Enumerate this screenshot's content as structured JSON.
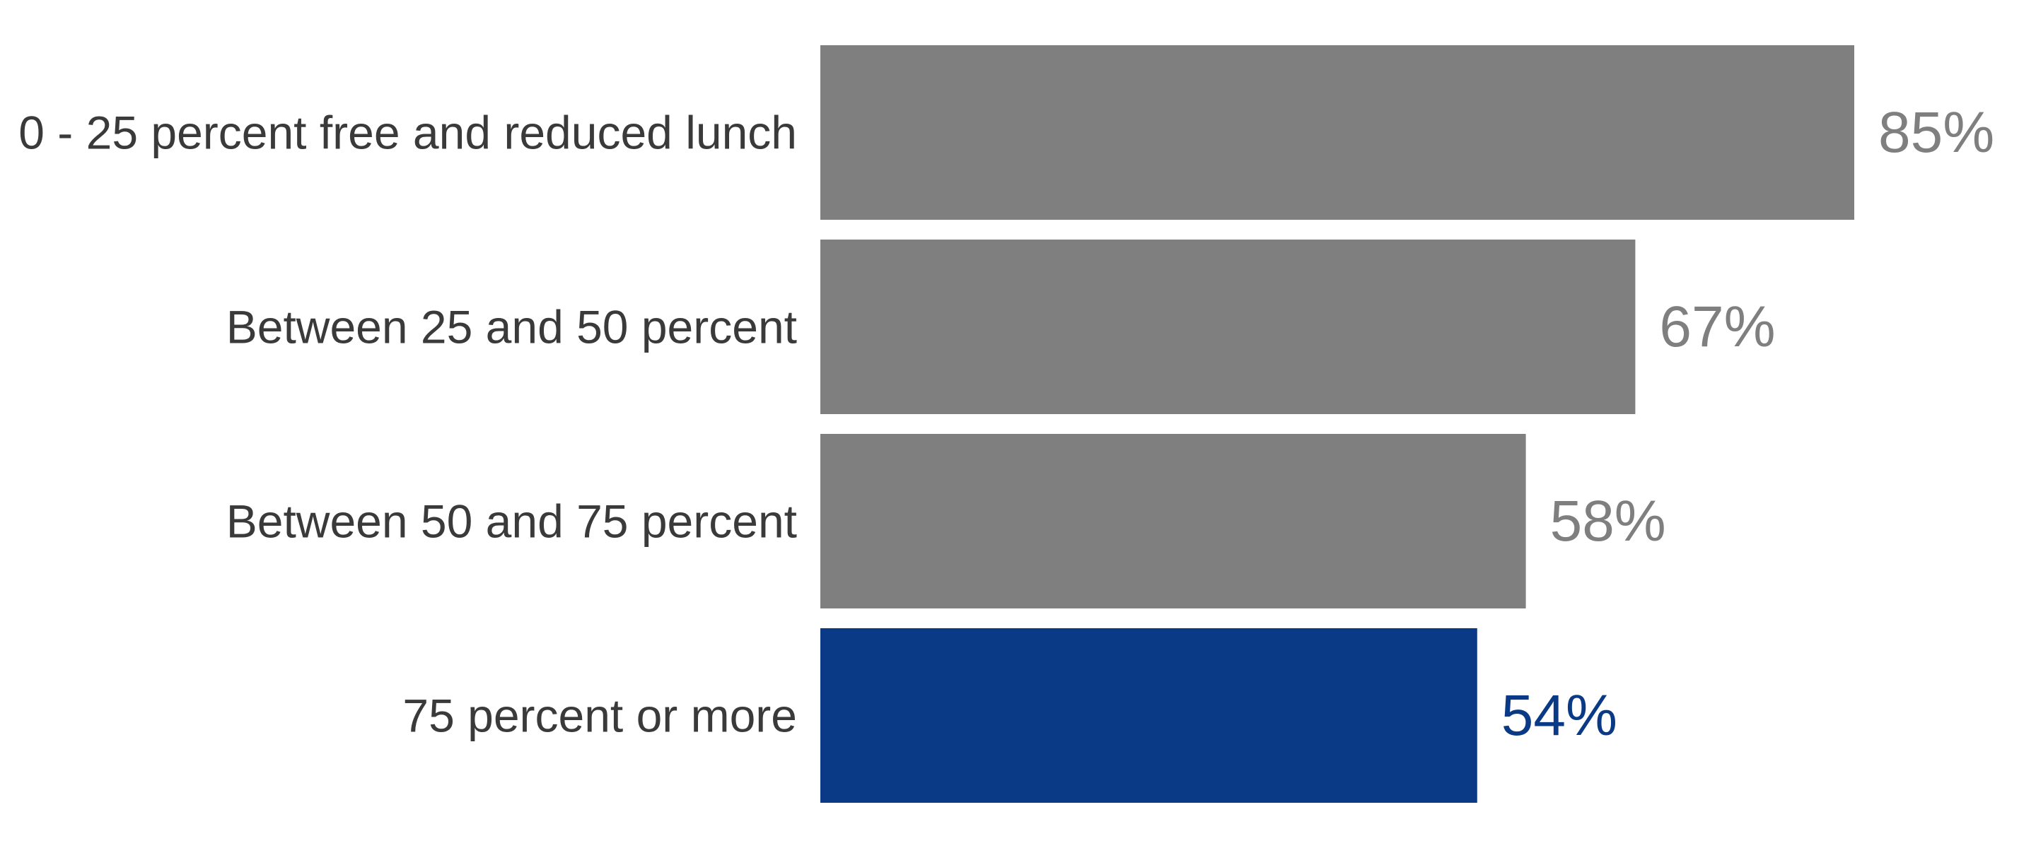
{
  "chart_data": {
    "type": "bar",
    "orientation": "horizontal",
    "title": "",
    "xlabel": "",
    "ylabel": "",
    "categories": [
      "0 - 25 percent free and reduced lunch",
      "Between 25 and 50 percent",
      "Between 50 and 75 percent",
      "75 percent or more"
    ],
    "values": [
      85,
      67,
      58,
      54
    ],
    "value_labels": [
      "85%",
      "67%",
      "58%",
      "54%"
    ],
    "xlim": [
      0,
      100
    ],
    "grid": false,
    "legend": "none",
    "colors": [
      "#7f7f7f",
      "#7f7f7f",
      "#7f7f7f",
      "#0a3985"
    ],
    "label_colors": [
      "#7f7f7f",
      "#7f7f7f",
      "#7f7f7f",
      "#0a3985"
    ]
  }
}
